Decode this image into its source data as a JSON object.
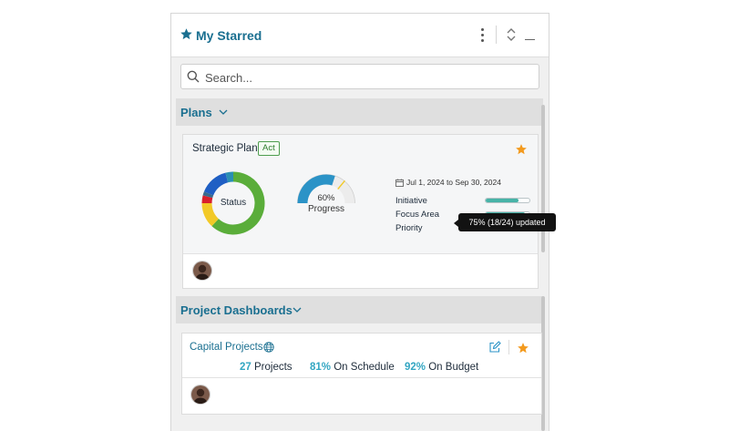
{
  "header": {
    "title": "My Starred"
  },
  "search": {
    "placeholder": "Search..."
  },
  "sections": {
    "plans": {
      "label": "Plans"
    },
    "dashboards": {
      "label": "Project Dashboards"
    }
  },
  "plan_card": {
    "name": "Strategic Plan",
    "badge": "Act",
    "status_label": "Status",
    "status_segments": [
      {
        "color": "#5aad3a",
        "fraction": 0.62
      },
      {
        "color": "#f2c927",
        "fraction": 0.13
      },
      {
        "color": "#d8202c",
        "fraction": 0.04
      },
      {
        "color": "#3a6a8b",
        "fraction": 0.02
      },
      {
        "color": "#1f5fc4",
        "fraction": 0.15
      },
      {
        "color": "#2a8fb3",
        "fraction": 0.04
      }
    ],
    "progress_value": "60%",
    "progress_fraction": 0.6,
    "progress_label": "Progress",
    "date_range": "Jul 1, 2024 to Sep 30, 2024",
    "rows": [
      {
        "label": "Initiative",
        "fraction": 0.75
      },
      {
        "label": "Focus Area",
        "fraction": 0.9
      },
      {
        "label": "Priority",
        "fraction": 0.5
      }
    ],
    "tooltip": "75% (18/24) updated"
  },
  "project_card": {
    "name": "Capital Projects",
    "projects_value": "27",
    "projects_label": "Projects",
    "schedule_value": "81%",
    "schedule_label": "On Schedule",
    "budget_value": "92%",
    "budget_label": "On Budget"
  },
  "colors": {
    "accent": "#1a6f90",
    "star": "#f39a1e",
    "progress": "#2b93c7",
    "bar_fill": "#47b3a7"
  },
  "icons": [
    "star-icon",
    "kebab-menu-icon",
    "expand-collapse-icon",
    "minimize-icon",
    "search-icon",
    "chevron-down-icon",
    "calendar-icon",
    "globe-icon",
    "edit-icon"
  ]
}
